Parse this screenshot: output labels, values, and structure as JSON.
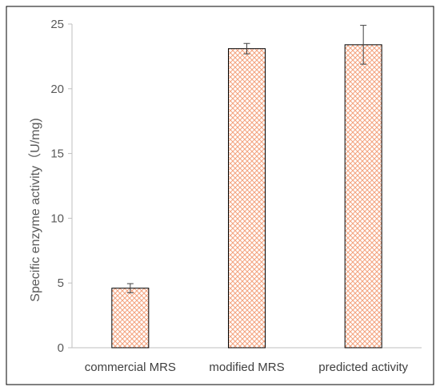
{
  "chart_data": {
    "type": "bar",
    "title": "",
    "xlabel": "",
    "ylabel": "Specific enzyme activity（U/mg)",
    "categories": [
      "commercial MRS",
      "modified MRS",
      "predicted activity"
    ],
    "values": [
      4.6,
      23.1,
      23.4
    ],
    "error": [
      0.35,
      0.4,
      1.5
    ],
    "ylim": [
      0,
      25
    ],
    "yticks": [
      0,
      5,
      10,
      15,
      20,
      25
    ],
    "grid": false,
    "legend": "none",
    "colors": {
      "bar_pattern": "#f4a582",
      "bar_edge": "#000000",
      "axis": "#bfbfbf",
      "frame": "#000000"
    }
  }
}
